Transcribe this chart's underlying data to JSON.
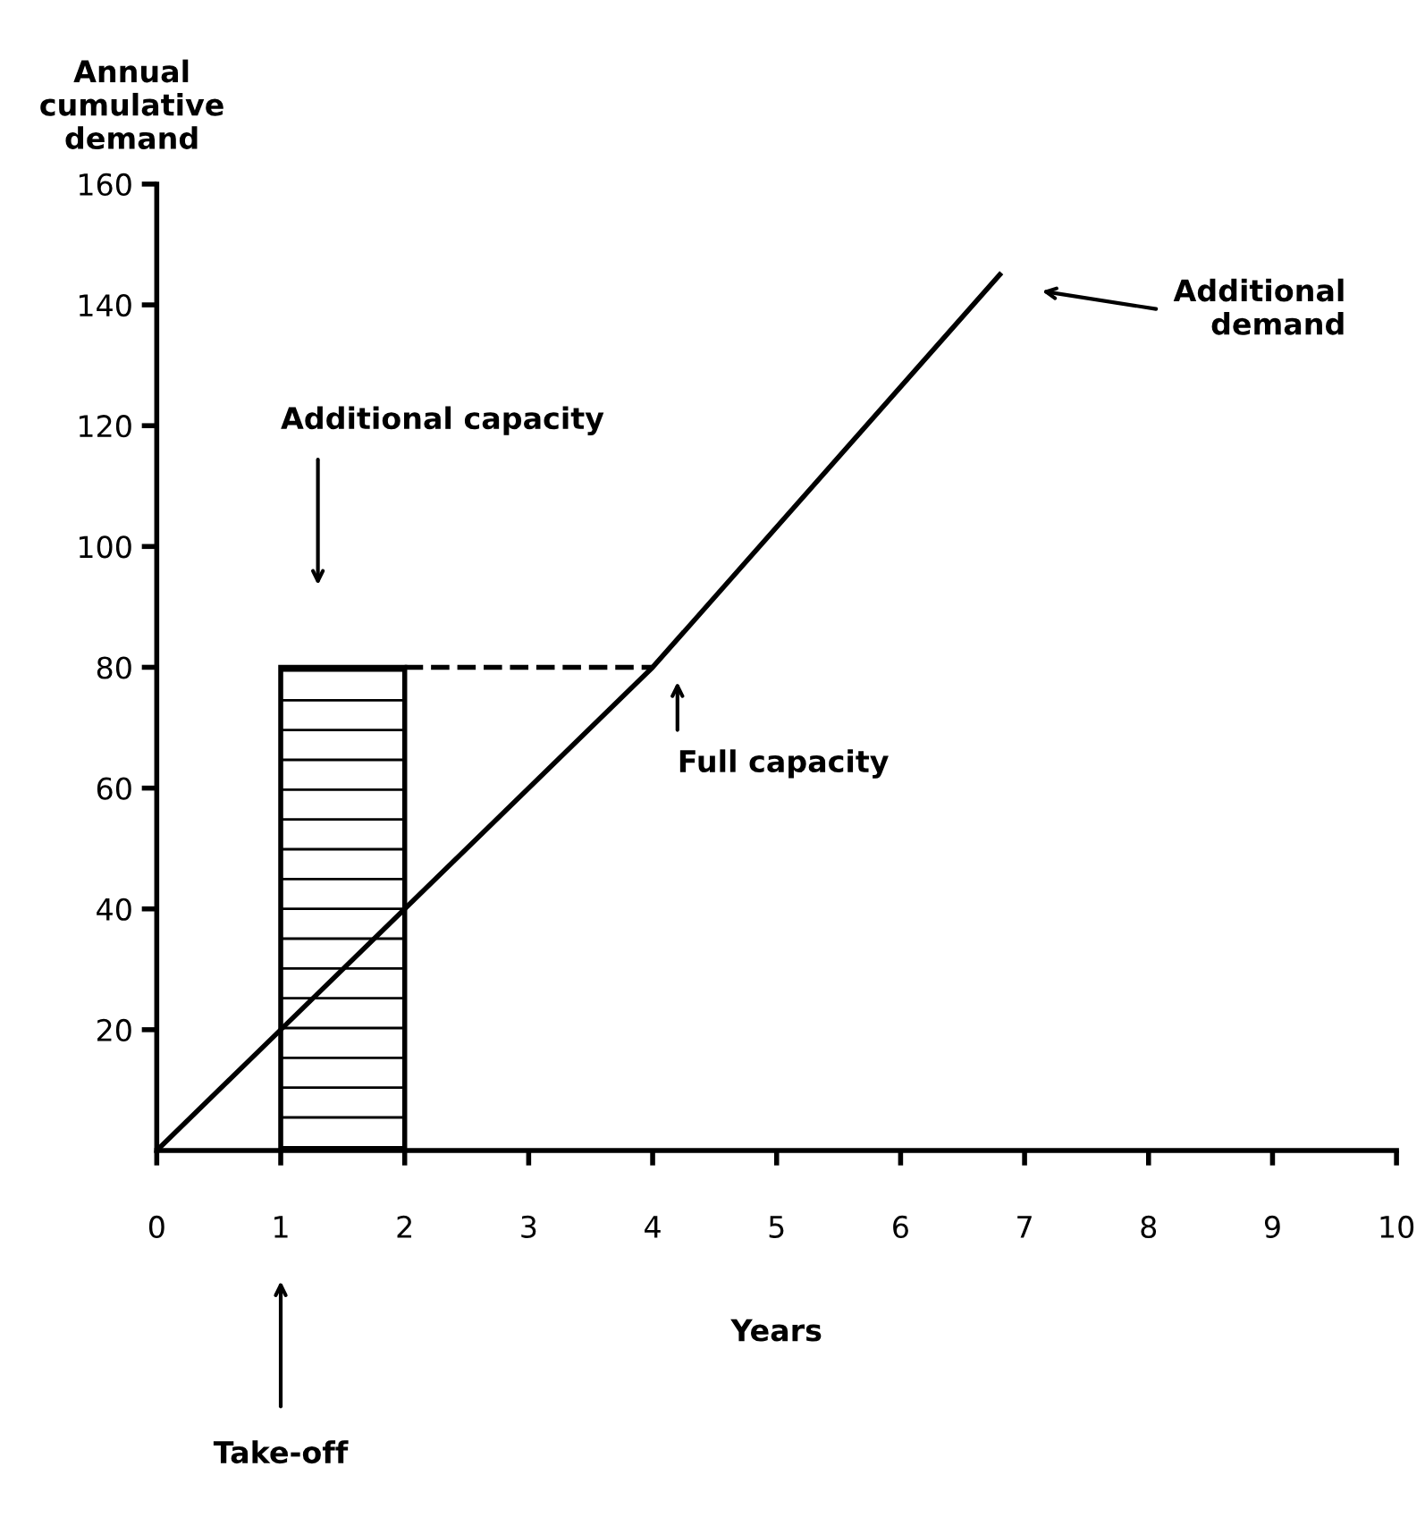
{
  "chart_data": {
    "type": "line",
    "xlabel": "Years",
    "ylabel": "Annual\ncumulative\ndemand",
    "xlim": [
      0,
      10
    ],
    "xticks": [
      0,
      1,
      2,
      3,
      4,
      5,
      6,
      7,
      8,
      9,
      10
    ],
    "ylim": [
      0,
      160
    ],
    "yticks": [
      20,
      40,
      60,
      80,
      100,
      120,
      140,
      160
    ],
    "grid": false,
    "legend": false,
    "series": [
      {
        "type": "bar",
        "color": "#000000",
        "x": [
          1.5
        ],
        "values": [
          80
        ]
      },
      {
        "type": "line",
        "color": "#000000",
        "line_style": "dashed",
        "x": [
          2,
          4
        ],
        "values": [
          80,
          80
        ]
      },
      {
        "color": "#000000",
        "line_style": "solid",
        "x": [
          0,
          1,
          2,
          4,
          6.8
        ],
        "values": [
          0,
          20,
          40,
          80,
          145
        ]
      }
    ],
    "annotations": [
      "Additional capacity",
      "Full capacity",
      "Additional\ndemand",
      "Take-off"
    ]
  }
}
